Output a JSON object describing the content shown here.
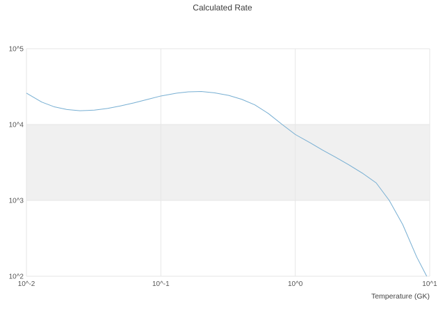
{
  "chart_data": {
    "type": "line",
    "title": "Calculated Rate",
    "xlabel": "Temperature (GK)",
    "ylabel": "",
    "xscale": "log",
    "yscale": "log",
    "xlim": [
      0.01,
      10
    ],
    "ylim": [
      100,
      100000
    ],
    "x_ticks": [
      "10^-2",
      "10^-1",
      "10^0",
      "10^1"
    ],
    "x_tick_values": [
      0.01,
      0.1,
      1,
      10
    ],
    "y_ticks": [
      "10^2",
      "10^3",
      "10^4",
      "10^5"
    ],
    "y_tick_values": [
      100,
      1000,
      10000,
      100000
    ],
    "grid": true,
    "grid_color": "#e6e6e6",
    "band": {
      "y_range": [
        1000,
        10000
      ],
      "color": "#f0f0f0"
    },
    "line_color": "#76aed2",
    "legend": "none",
    "series": [
      {
        "name": "calculated-rate",
        "x": [
          0.01,
          0.013,
          0.016,
          0.02,
          0.025,
          0.032,
          0.04,
          0.05,
          0.063,
          0.08,
          0.1,
          0.13,
          0.16,
          0.2,
          0.25,
          0.32,
          0.4,
          0.5,
          0.63,
          0.8,
          1.0,
          1.3,
          1.6,
          2.0,
          2.5,
          3.2,
          4.0,
          5.0,
          6.3,
          8.0,
          9.5
        ],
        "y": [
          26000,
          19800,
          17200,
          15800,
          15200,
          15500,
          16300,
          17600,
          19300,
          21500,
          23800,
          25900,
          27000,
          27300,
          26200,
          24200,
          21500,
          18200,
          14000,
          10000,
          7400,
          5700,
          4600,
          3700,
          2950,
          2250,
          1700,
          1000,
          480,
          180,
          100
        ]
      }
    ]
  }
}
